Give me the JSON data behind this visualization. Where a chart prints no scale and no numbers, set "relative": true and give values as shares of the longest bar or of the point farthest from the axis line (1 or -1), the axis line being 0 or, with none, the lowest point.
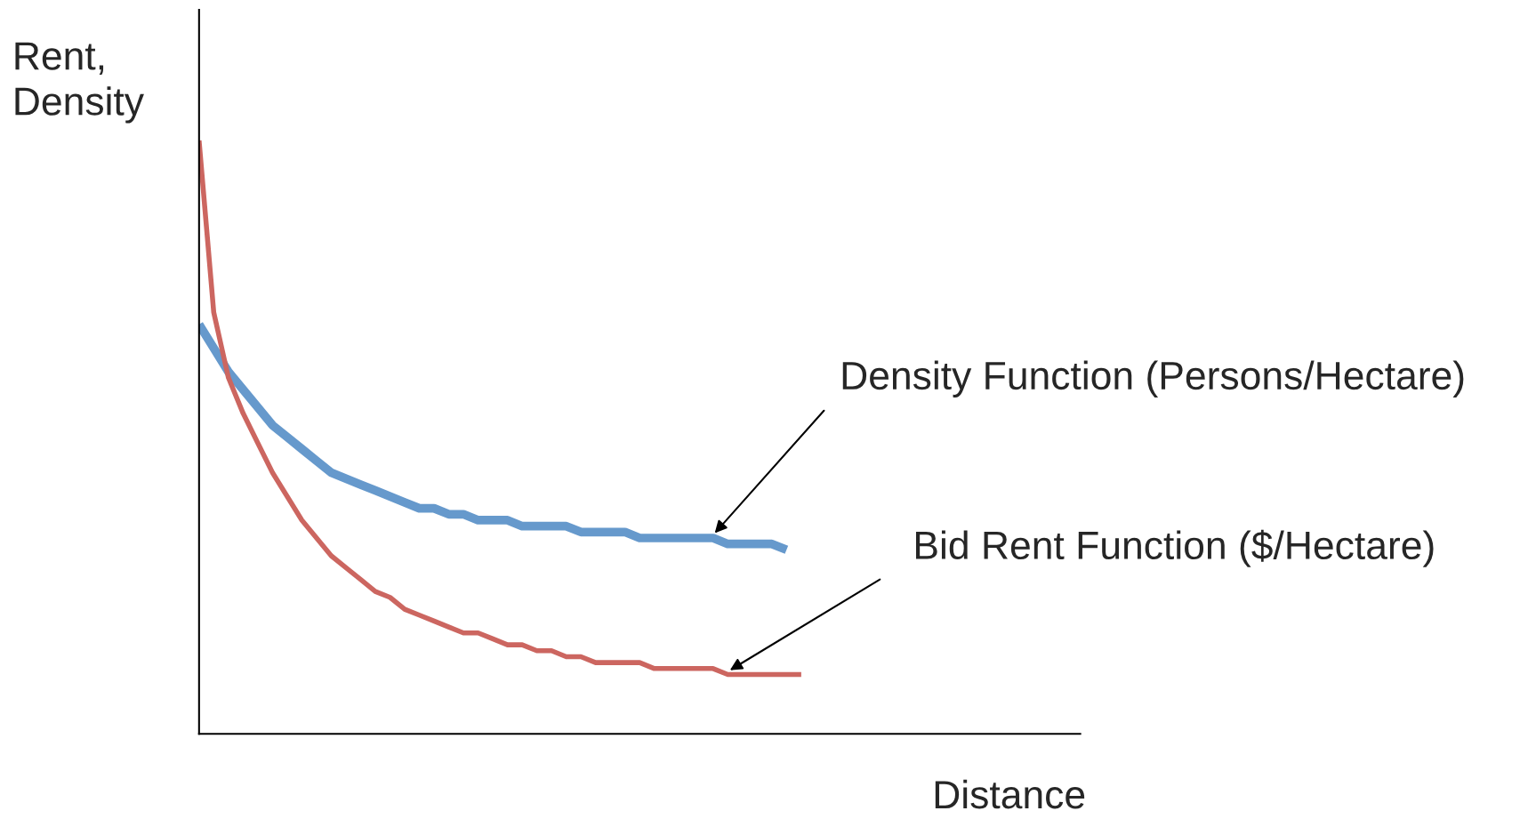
{
  "chart_data": {
    "type": "line",
    "relative": true,
    "ylabel": "Rent,\nDensity",
    "xlabel": "Distance",
    "legend": false,
    "marker": "none",
    "line_style": "solid",
    "categories": [
      null,
      null,
      null,
      null,
      null,
      null,
      null,
      null,
      null,
      null,
      null,
      null,
      null,
      null,
      null,
      null,
      null,
      null,
      null,
      null,
      null,
      null,
      null,
      null,
      null,
      null,
      null,
      null,
      null,
      null,
      null,
      null,
      null,
      null,
      null,
      null,
      null,
      null,
      null,
      null,
      null,
      null,
      null,
      null,
      null,
      null,
      null,
      null,
      null,
      null,
      null,
      null,
      null,
      null,
      null,
      null,
      null,
      null,
      null,
      null,
      null
    ],
    "series": [
      {
        "name": "Density Function (Persons/Hectare)",
        "color": "#6699cc",
        "values": [
          0.69,
          0.65,
          0.61,
          0.58,
          0.55,
          0.52,
          0.5,
          0.48,
          0.46,
          0.44,
          0.43,
          0.42,
          0.41,
          0.4,
          0.39,
          0.38,
          0.38,
          0.37,
          0.37,
          0.36,
          0.36,
          0.36,
          0.35,
          0.35,
          0.35,
          0.35,
          0.34,
          0.34,
          0.34,
          0.34,
          0.33,
          0.33,
          0.33,
          0.33,
          0.33,
          0.33,
          0.32,
          0.32,
          0.32,
          0.32,
          0.31,
          null,
          null,
          null,
          null,
          null,
          null,
          null,
          null,
          null,
          null,
          null,
          null,
          null,
          null,
          null,
          null,
          null,
          null,
          null,
          null
        ]
      },
      {
        "name": "Bid Rent Function ($/Hectare)",
        "color": "#cc6660",
        "values": [
          1.0,
          0.71,
          0.6,
          0.54,
          0.49,
          0.44,
          0.4,
          0.36,
          0.33,
          0.3,
          0.28,
          0.26,
          0.24,
          0.23,
          0.21,
          0.2,
          0.19,
          0.18,
          0.17,
          0.17,
          0.16,
          0.15,
          0.15,
          0.14,
          0.14,
          0.13,
          0.13,
          0.12,
          0.12,
          0.12,
          0.12,
          0.11,
          0.11,
          0.11,
          0.11,
          0.11,
          0.1,
          0.1,
          0.1,
          0.1,
          0.1,
          0.1,
          null,
          null,
          null,
          null,
          null,
          null,
          null,
          null,
          null,
          null,
          null,
          null,
          null,
          null,
          null,
          null,
          null,
          null,
          null
        ]
      }
    ]
  }
}
